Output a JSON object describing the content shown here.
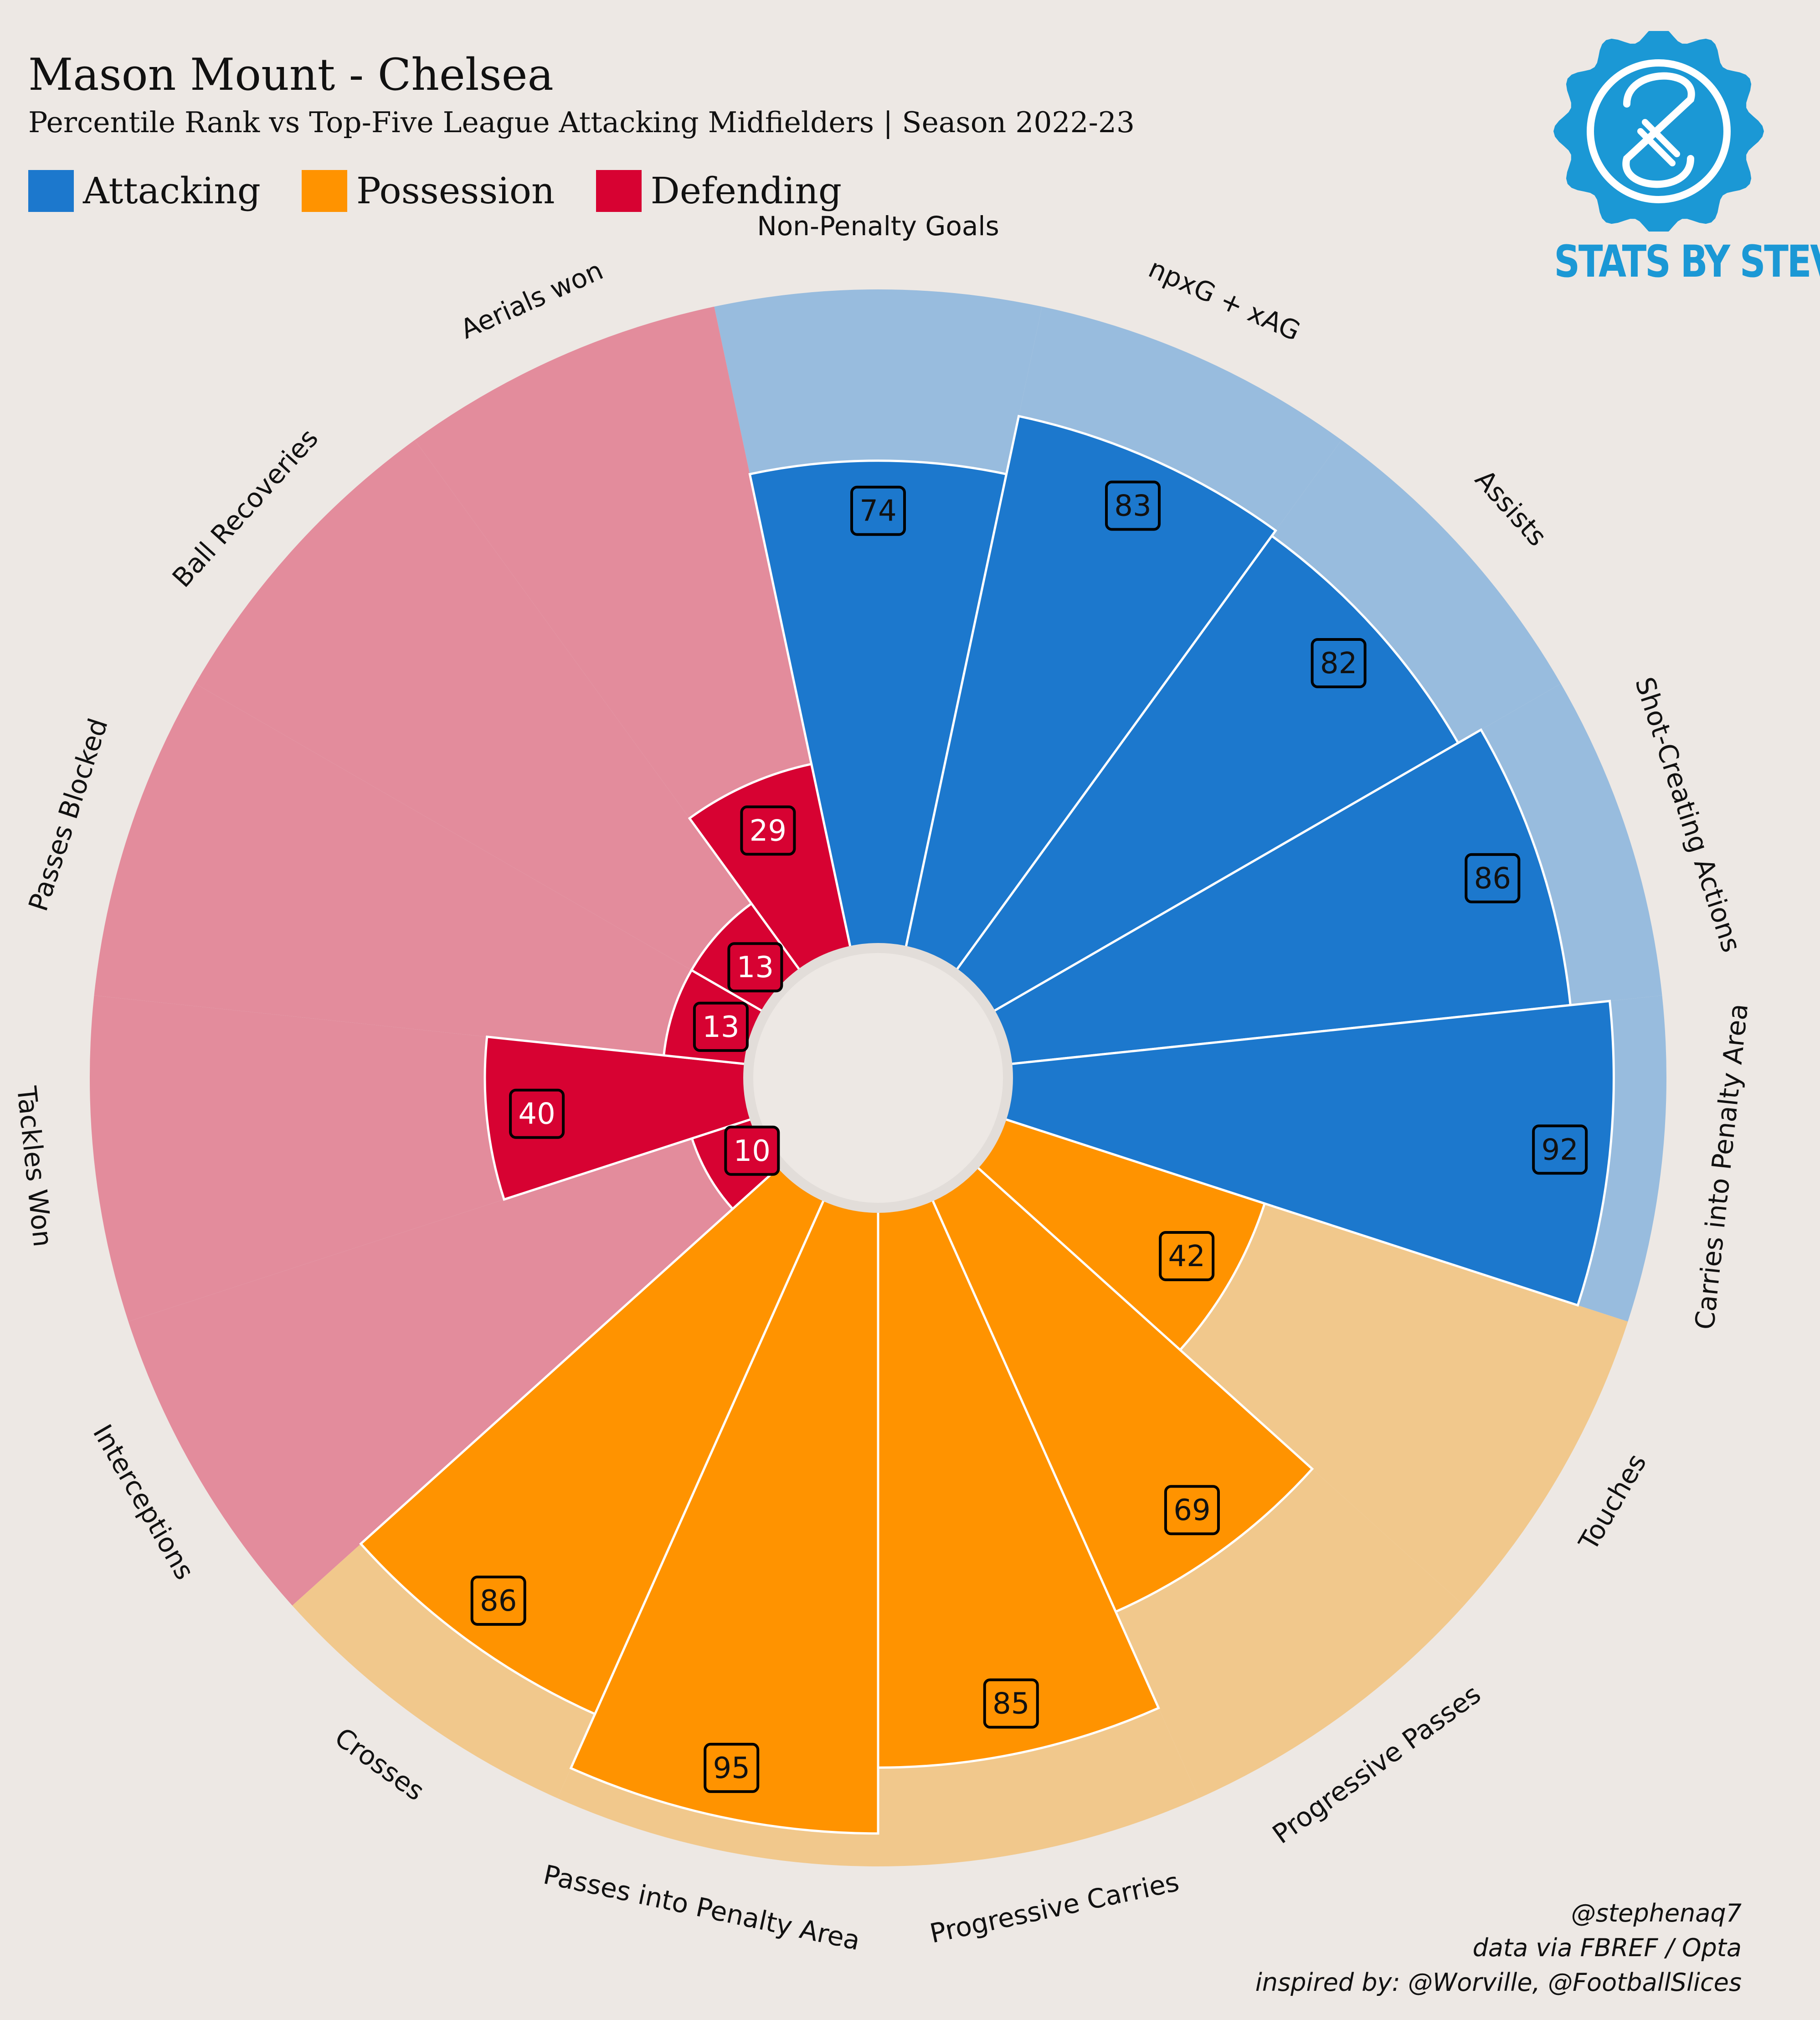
{
  "header": {
    "title": "Mason Mount - Chelsea",
    "subtitle": "Percentile Rank vs Top-Five League Attacking Midfielders | Season 2022-23"
  },
  "legend": [
    {
      "label": "Attacking",
      "color": "#1c78cd"
    },
    {
      "label": "Possession",
      "color": "#ff9300"
    },
    {
      "label": "Defending",
      "color": "#d70232"
    }
  ],
  "logo": {
    "text": "STATS BY STEVE",
    "color": "#1b98d5",
    "icon": "stats-by-steve-badge-icon"
  },
  "credits": {
    "line1": "@stephenaq7",
    "line2": "data via FBREF / Opta",
    "line3": "inspired by: @Worville, @FootballSlices"
  },
  "chart_data": {
    "type": "polar-bar",
    "range": [
      0,
      100
    ],
    "background_colors": {
      "Attacking": "#98bcde",
      "Possession": "#f1c88c",
      "Defending": "#e38c9c"
    },
    "categories": [
      "Non-Penalty Goals",
      "npxG + xAG",
      "Assists",
      "Shot-Creating Actions",
      "Carries into Penalty Area",
      "Touches",
      "Progressive Passes",
      "Progressive Carries",
      "Passes into Penalty Area",
      "Crosses",
      "Interceptions",
      "Tackles Won",
      "Passes Blocked",
      "Ball Recoveries",
      "Aerials won"
    ],
    "groups": [
      "Attacking",
      "Attacking",
      "Attacking",
      "Attacking",
      "Attacking",
      "Possession",
      "Possession",
      "Possession",
      "Possession",
      "Possession",
      "Defending",
      "Defending",
      "Defending",
      "Defending",
      "Defending"
    ],
    "values": [
      74,
      83,
      82,
      86,
      92,
      42,
      69,
      85,
      95,
      86,
      10,
      40,
      13,
      13,
      29
    ]
  }
}
